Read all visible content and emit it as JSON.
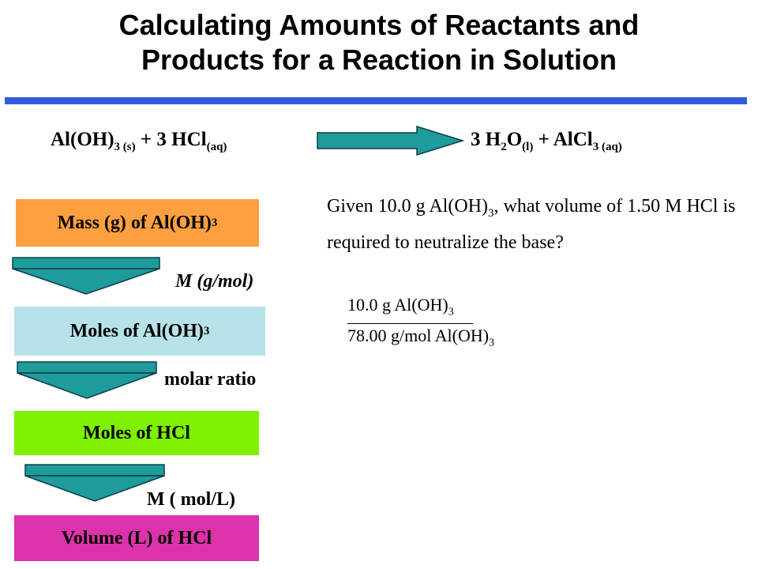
{
  "title": {
    "line1": "Calculating Amounts of Reactants and",
    "line2": "Products for a Reaction in Solution"
  },
  "equation": {
    "reactant1": "Al(OH)",
    "reactant1_sub": "3 (s)",
    "plus1": "+ 3 HCl",
    "reactant2_sub": "(aq)",
    "product1_coef": "3 H",
    "product1_sub_h": "2",
    "product1_o": "O",
    "product1_sub_state": "(l)",
    "plus2": "+ AlCl",
    "product2_sub": "3 (aq)"
  },
  "flow": {
    "box1": {
      "text": "Mass (g) of Al(OH)",
      "sub": "3",
      "color": "#ffa040"
    },
    "label1": "M (g/mol)",
    "box2": {
      "text": "Moles of Al(OH)",
      "sub": "3",
      "color": "#b7e2e8"
    },
    "label2": "molar ratio",
    "box3": {
      "text": "Moles of HCl",
      "color": "#7ff000"
    },
    "label3": "M ( mol/L)",
    "box4": {
      "text": "Volume (L) of HCl",
      "color": "#dd33aa"
    }
  },
  "question": {
    "part1": "Given 10.0 g Al(OH)",
    "sub": "3",
    "part2": ", what volume of 1.50 M HCl is required to neutralize the base?"
  },
  "calculation": {
    "numerator": "10.0 g Al(OH)",
    "numerator_sub": "3",
    "denominator": "78.00 g/mol Al(OH)",
    "denominator_sub": "3"
  },
  "colors": {
    "rule": "#2f5fd8",
    "arrow_fill": "#1e9b9b",
    "arrow_stroke": "#0d3e4a"
  }
}
